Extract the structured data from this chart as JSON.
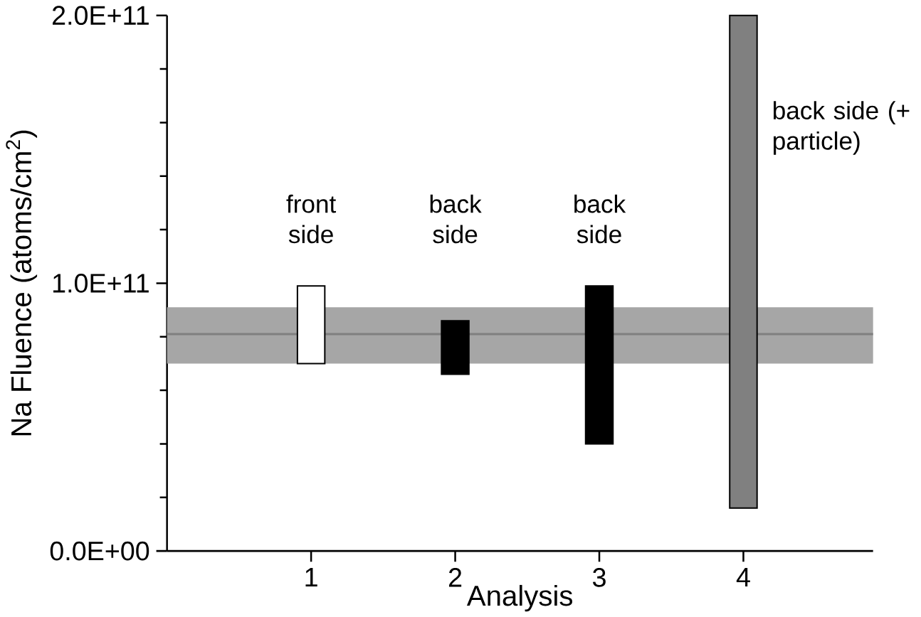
{
  "chart_data": {
    "type": "bar",
    "xlabel": "Analysis",
    "ylabel": "Na Fluence (atoms/cm$^{2}$)",
    "categories": [
      "1",
      "2",
      "3",
      "4"
    ],
    "base": [
      70000000000.0,
      66000000000.0,
      40000000000.0,
      16000000000.0
    ],
    "values": [
      29000000000.0,
      20000000000.0,
      59000000000.0,
      184000000000.0
    ],
    "colors": [
      "#ffffff",
      "#000000",
      "#000000",
      "#808080"
    ],
    "ylim": [
      0,
      200000000000.0
    ],
    "yticks": [
      {
        "value": 0,
        "label": "0.0E+00"
      },
      {
        "value": 100000000000.0,
        "label": "1.0E+11"
      },
      {
        "value": 200000000000.0,
        "label": "2.0E+11"
      }
    ],
    "bands": [
      {
        "axis": "y",
        "from": 70000000000.0,
        "to": 91000000000.0,
        "color": "#a6a6a6"
      }
    ],
    "ref_lines": [
      {
        "axis": "y",
        "value": 81000000000.0,
        "color": "#7f7f7f"
      }
    ],
    "annotations": [
      "front side",
      "back side",
      "back side",
      "back side (+ particle)"
    ],
    "grid": false
  }
}
